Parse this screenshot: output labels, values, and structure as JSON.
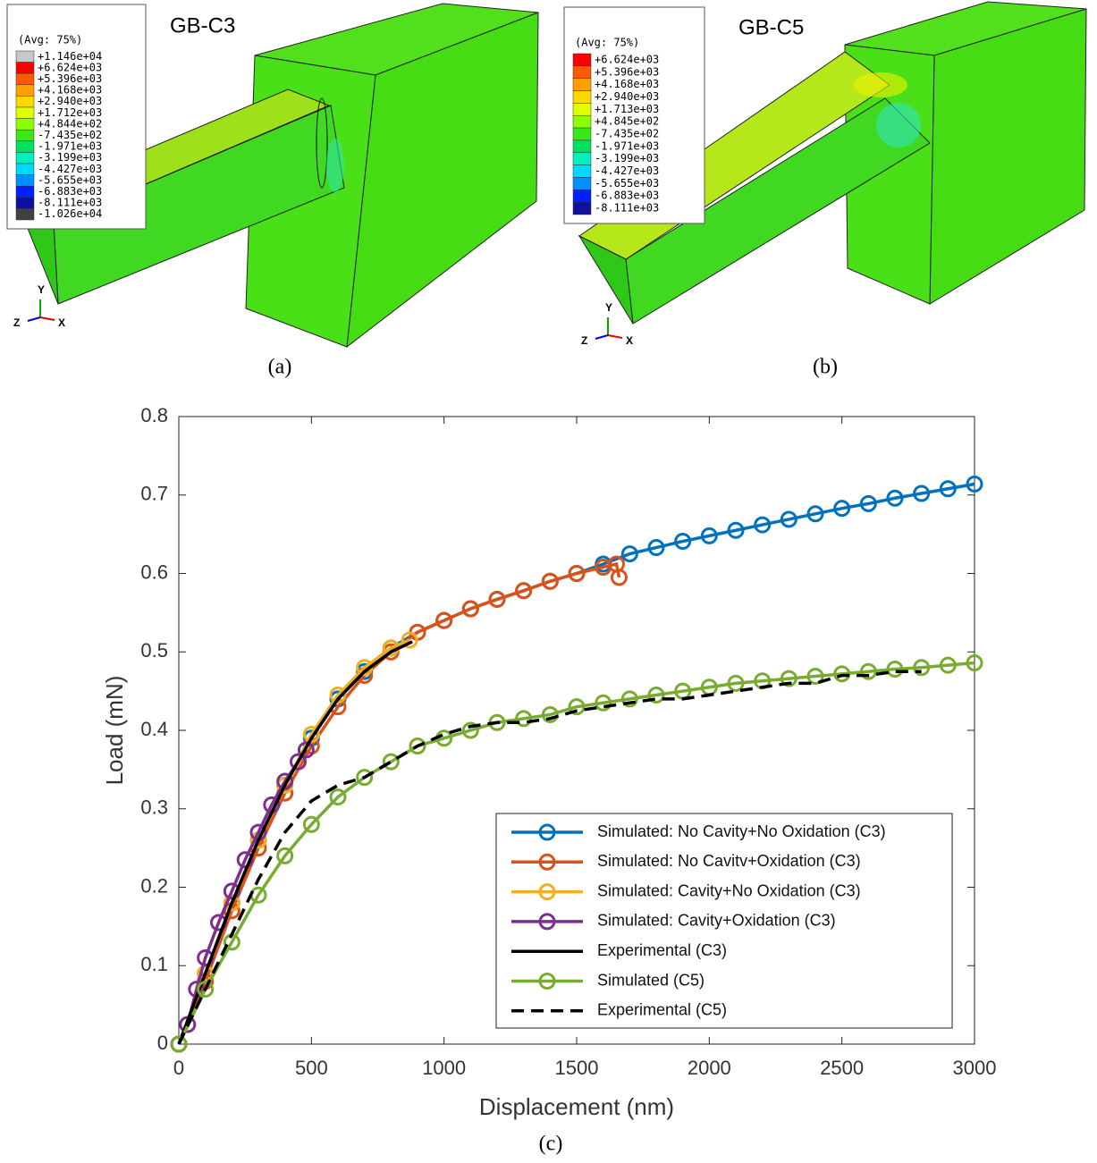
{
  "panels": [
    {
      "title": "GB-C3",
      "legend_header": "(Avg: 75%)",
      "caption": "(a)",
      "axes": [
        "Y",
        "Z",
        "X"
      ],
      "legend": [
        {
          "label": "+1.146e+04",
          "color": "#c8c8c8"
        },
        {
          "label": "+6.624e+03",
          "color": "#ff0000"
        },
        {
          "label": "+5.396e+03",
          "color": "#ff5a00"
        },
        {
          "label": "+4.168e+03",
          "color": "#ffa000"
        },
        {
          "label": "+2.940e+03",
          "color": "#ffd800"
        },
        {
          "label": "+1.712e+03",
          "color": "#e0ff00"
        },
        {
          "label": "+4.844e+02",
          "color": "#8cff00"
        },
        {
          "label": "-7.435e+02",
          "color": "#3ce61a"
        },
        {
          "label": "-1.971e+03",
          "color": "#00e060"
        },
        {
          "label": "-3.199e+03",
          "color": "#00f0c0"
        },
        {
          "label": "-4.427e+03",
          "color": "#00d8ff"
        },
        {
          "label": "-5.655e+03",
          "color": "#0090ff"
        },
        {
          "label": "-6.883e+03",
          "color": "#0020ff"
        },
        {
          "label": "-8.111e+03",
          "color": "#1010a0"
        },
        {
          "label": "-1.026e+04",
          "color": "#404040"
        }
      ]
    },
    {
      "title": "GB-C5",
      "legend_header": "(Avg: 75%)",
      "caption": "(b)",
      "axes": [
        "Y",
        "Z",
        "X"
      ],
      "legend": [
        {
          "label": "+6.624e+03",
          "color": "#ff0000"
        },
        {
          "label": "+5.396e+03",
          "color": "#ff5a00"
        },
        {
          "label": "+4.168e+03",
          "color": "#ffa000"
        },
        {
          "label": "+2.940e+03",
          "color": "#ffd800"
        },
        {
          "label": "+1.713e+03",
          "color": "#e0ff00"
        },
        {
          "label": "+4.845e+02",
          "color": "#8cff00"
        },
        {
          "label": "-7.435e+02",
          "color": "#3ce61a"
        },
        {
          "label": "-1.971e+03",
          "color": "#00e060"
        },
        {
          "label": "-3.199e+03",
          "color": "#00f0c0"
        },
        {
          "label": "-4.427e+03",
          "color": "#00d8ff"
        },
        {
          "label": "-5.655e+03",
          "color": "#0090ff"
        },
        {
          "label": "-6.883e+03",
          "color": "#0020ff"
        },
        {
          "label": "-8.111e+03",
          "color": "#1010a0"
        }
      ]
    }
  ],
  "chart_data": {
    "type": "line",
    "caption": "(c)",
    "x_label": "Displacement (nm)",
    "y_label": "Load (mN)",
    "xlim": [
      0,
      3000
    ],
    "xticks": [
      0,
      500,
      1000,
      1500,
      2000,
      2500,
      3000
    ],
    "ylim": [
      0,
      0.8
    ],
    "yticks": [
      0,
      0.1,
      0.2,
      0.3,
      0.4,
      0.5,
      0.6,
      0.7,
      0.8
    ],
    "legend": "lower right",
    "series": [
      {
        "name": "Simulated: No Cavity+No Oxidation (C3)",
        "color": "#0072bd",
        "marker": "o",
        "line_style": "solid",
        "x": [
          0,
          100,
          200,
          300,
          400,
          500,
          600,
          700,
          800,
          900,
          1000,
          1100,
          1200,
          1300,
          1400,
          1500,
          1600,
          1700,
          1800,
          1900,
          2000,
          2100,
          2200,
          2300,
          2400,
          2500,
          2600,
          2700,
          2800,
          2900,
          3000
        ],
        "values": [
          0,
          0.09,
          0.18,
          0.26,
          0.33,
          0.39,
          0.44,
          0.475,
          0.505,
          0.525,
          0.54,
          0.555,
          0.567,
          0.578,
          0.59,
          0.6,
          0.612,
          0.625,
          0.633,
          0.641,
          0.648,
          0.655,
          0.662,
          0.669,
          0.676,
          0.683,
          0.689,
          0.696,
          0.702,
          0.708,
          0.714
        ]
      },
      {
        "name": "Simulated: No Cavitv+Oxidation (C3)",
        "color": "#d95319",
        "marker": "o",
        "line_style": "solid",
        "x": [
          0,
          100,
          200,
          300,
          400,
          500,
          600,
          700,
          800,
          900,
          1000,
          1100,
          1200,
          1300,
          1400,
          1500,
          1600,
          1650,
          1660
        ],
        "values": [
          0,
          0.08,
          0.17,
          0.25,
          0.32,
          0.38,
          0.43,
          0.47,
          0.5,
          0.525,
          0.54,
          0.555,
          0.567,
          0.578,
          0.59,
          0.6,
          0.608,
          0.612,
          0.595
        ]
      },
      {
        "name": "Simulated: Cavity+No Oxidation  (C3)",
        "color": "#edb120",
        "marker": "o",
        "line_style": "solid",
        "x": [
          0,
          100,
          200,
          300,
          400,
          500,
          600,
          700,
          800,
          870
        ],
        "values": [
          0,
          0.09,
          0.18,
          0.26,
          0.33,
          0.395,
          0.445,
          0.48,
          0.505,
          0.515
        ]
      },
      {
        "name": "Simulated: Cavity+Oxidation (C3)",
        "color": "#7e2f8e",
        "marker": "o",
        "line_style": "solid",
        "x": [
          0,
          33,
          67,
          100,
          150,
          200,
          250,
          300,
          350,
          400,
          450,
          480
        ],
        "values": [
          0,
          0.025,
          0.07,
          0.11,
          0.155,
          0.195,
          0.235,
          0.27,
          0.305,
          0.335,
          0.36,
          0.375
        ]
      },
      {
        "name": "Experimental (C3)",
        "color": "#000000",
        "marker": "none",
        "line_style": "solid",
        "x": [
          0,
          100,
          200,
          300,
          400,
          500,
          600,
          700,
          800,
          880
        ],
        "values": [
          0,
          0.09,
          0.18,
          0.26,
          0.33,
          0.39,
          0.44,
          0.475,
          0.5,
          0.513
        ]
      },
      {
        "name": "Simulated (C5)",
        "color": "#77ac30",
        "marker": "o",
        "line_style": "solid",
        "x": [
          0,
          100,
          200,
          300,
          400,
          500,
          600,
          700,
          800,
          900,
          1000,
          1100,
          1200,
          1300,
          1400,
          1500,
          1600,
          1700,
          1800,
          1900,
          2000,
          2100,
          2200,
          2300,
          2400,
          2500,
          2600,
          2700,
          2800,
          2900,
          3000
        ],
        "values": [
          0,
          0.07,
          0.13,
          0.19,
          0.24,
          0.28,
          0.315,
          0.34,
          0.36,
          0.38,
          0.39,
          0.4,
          0.41,
          0.415,
          0.42,
          0.43,
          0.435,
          0.44,
          0.445,
          0.45,
          0.455,
          0.46,
          0.463,
          0.466,
          0.469,
          0.472,
          0.475,
          0.478,
          0.48,
          0.483,
          0.486
        ]
      },
      {
        "name": "Experimental (C5)",
        "color": "#000000",
        "marker": "none",
        "line_style": "dashed",
        "x": [
          0,
          100,
          200,
          300,
          400,
          500,
          600,
          700,
          800,
          900,
          1000,
          1100,
          1200,
          1300,
          1400,
          1500,
          1600,
          1700,
          1800,
          1900,
          2000,
          2100,
          2200,
          2300,
          2400,
          2500,
          2600,
          2700,
          2800
        ],
        "values": [
          0,
          0.07,
          0.14,
          0.21,
          0.27,
          0.31,
          0.33,
          0.34,
          0.36,
          0.38,
          0.395,
          0.405,
          0.41,
          0.41,
          0.415,
          0.425,
          0.43,
          0.435,
          0.44,
          0.44,
          0.445,
          0.45,
          0.455,
          0.46,
          0.46,
          0.47,
          0.47,
          0.475,
          0.475
        ]
      }
    ]
  }
}
